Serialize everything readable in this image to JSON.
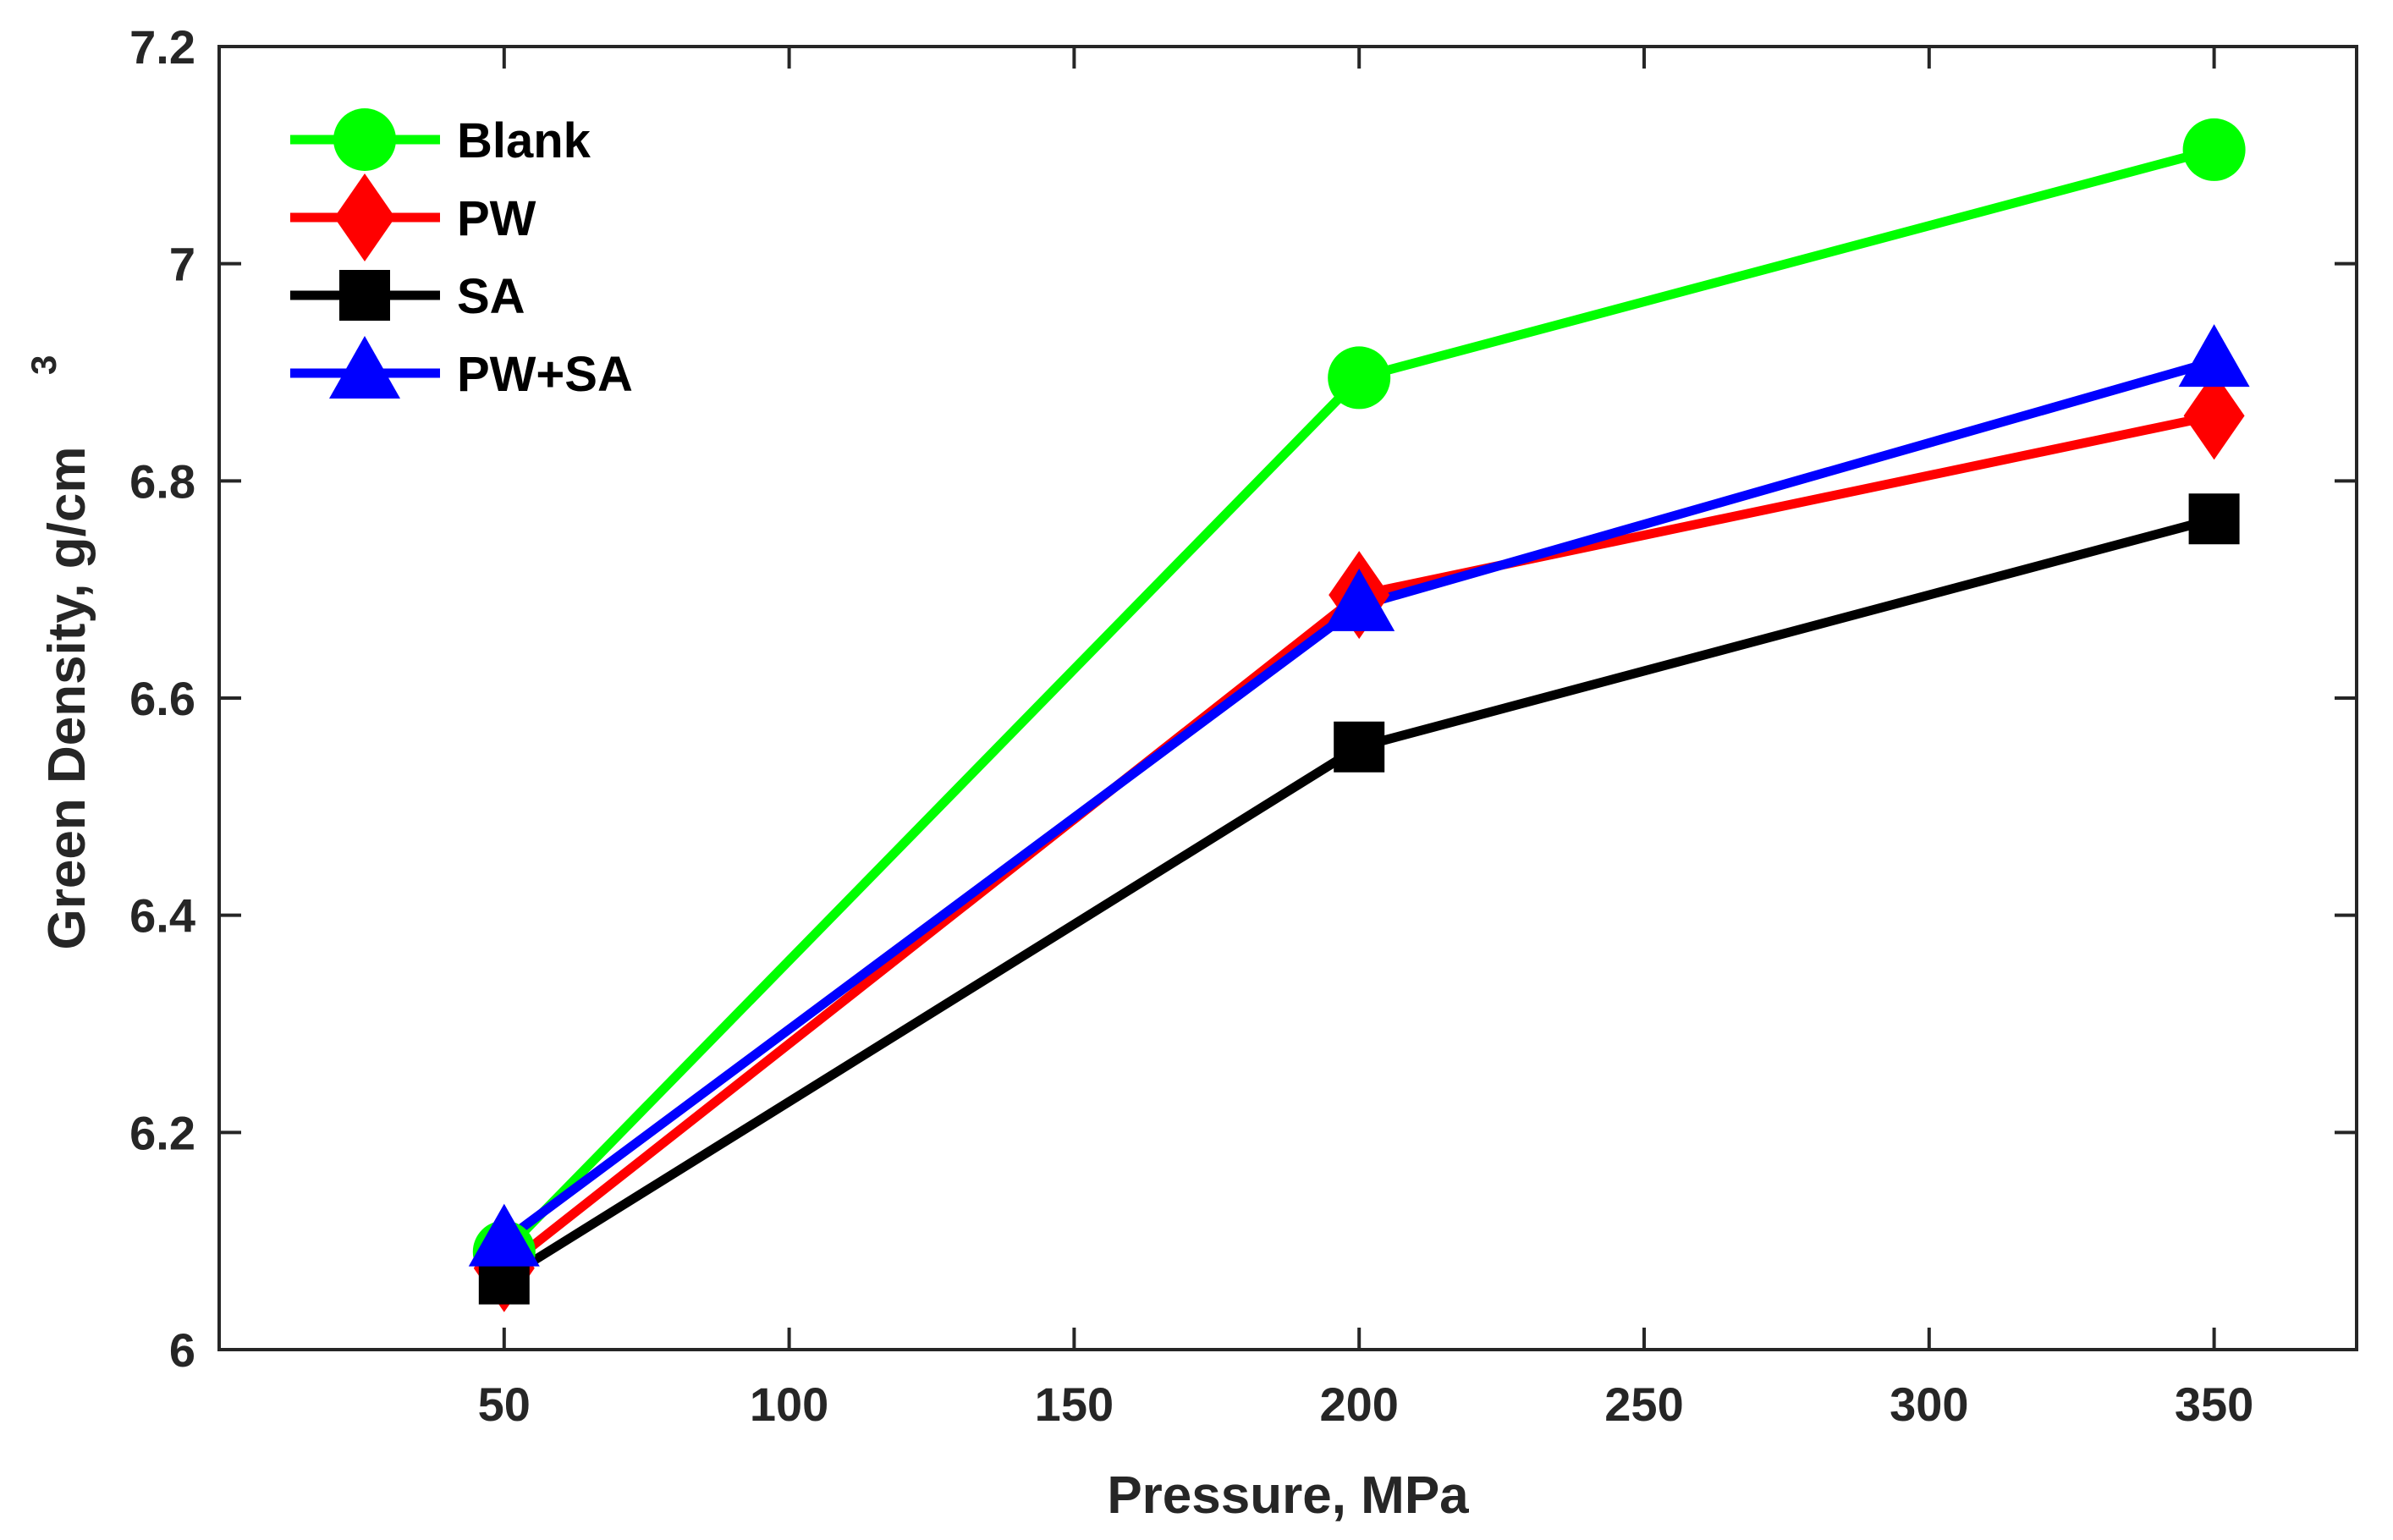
{
  "chart_data": {
    "type": "line",
    "title": "",
    "xlabel": "Pressure, MPa",
    "ylabel": "Green Density, g/cm",
    "ylabel_superscript": "3",
    "x": [
      50,
      200,
      350
    ],
    "xlim": [
      0,
      375
    ],
    "ylim": [
      6.0,
      7.2
    ],
    "xticks": [
      50,
      100,
      150,
      200,
      250,
      300,
      350
    ],
    "xtick_labels": [
      "50",
      "100",
      "150",
      "200",
      "250",
      "300",
      "350"
    ],
    "yticks": [
      6.0,
      6.2,
      6.4,
      6.6,
      6.8,
      7.0,
      7.2
    ],
    "ytick_labels": [
      "6",
      "6.2",
      "6.4",
      "6.6",
      "6.8",
      "7",
      "7.2"
    ],
    "grid": false,
    "legend_position": "top-left",
    "series": [
      {
        "name": "Blank",
        "marker": "circle",
        "color": "#00ff00",
        "values": [
          6.09,
          6.895,
          7.105
        ]
      },
      {
        "name": "PW",
        "marker": "diamond",
        "color": "#ff0000",
        "values": [
          6.075,
          6.695,
          6.86
        ]
      },
      {
        "name": "SA",
        "marker": "square",
        "color": "#000000",
        "values": [
          6.065,
          6.555,
          6.765
        ]
      },
      {
        "name": "PW+SA",
        "marker": "triangle",
        "color": "#0000ff",
        "values": [
          6.1,
          6.685,
          6.91
        ]
      }
    ]
  }
}
